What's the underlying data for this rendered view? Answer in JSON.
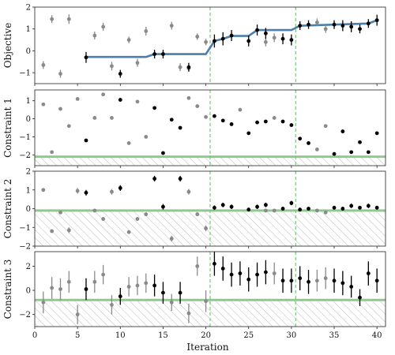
{
  "figure": {
    "xlabel": "Iteration",
    "x_ticks": [
      0,
      5,
      10,
      15,
      20,
      25,
      30,
      35,
      40
    ],
    "xlim": [
      0,
      41
    ],
    "phase_boundaries": [
      20.5,
      30.5
    ]
  },
  "colors": {
    "infeasible": "#8a8a8a",
    "feasible": "#000000",
    "best_line": "#4a7fab",
    "threshold": "#8fc98f",
    "phase_line": "#7cc47c",
    "hatch": "#bbbbbb"
  },
  "chart_data": [
    {
      "type": "scatter",
      "ylabel": "Objective",
      "ylim": [
        -1.5,
        2
      ],
      "yticks": [
        -1,
        0,
        1,
        2
      ],
      "series": [
        {
          "style": "infeasible",
          "points": [
            [
              1,
              -0.65,
              0.18
            ],
            [
              2,
              1.45,
              0.18
            ],
            [
              3,
              -1.05,
              0.18
            ],
            [
              4,
              1.45,
              0.22
            ],
            [
              7,
              0.7,
              0.18
            ],
            [
              8,
              1.1,
              0.18
            ],
            [
              9,
              -0.7,
              0.2
            ],
            [
              11,
              0.5,
              0.15
            ],
            [
              12,
              -0.55,
              0.18
            ],
            [
              13,
              0.9,
              0.2
            ],
            [
              16,
              1.15,
              0.18
            ],
            [
              17,
              -0.75,
              0.18
            ],
            [
              18,
              -0.8,
              0.15
            ],
            [
              19,
              0.65,
              0.15
            ],
            [
              20,
              0.4,
              0.15
            ],
            [
              27,
              0.4,
              0.2
            ],
            [
              28,
              0.6,
              0.2
            ],
            [
              33,
              1.3,
              0.18
            ],
            [
              34,
              1.0,
              0.18
            ]
          ]
        },
        {
          "style": "feasible",
          "points": [
            [
              6,
              -0.3,
              0.25
            ],
            [
              10,
              -1.05,
              0.18
            ],
            [
              14,
              -0.15,
              0.2
            ],
            [
              15,
              -0.15,
              0.2
            ],
            [
              18,
              -0.75,
              0.2
            ],
            [
              21,
              0.45,
              0.3
            ],
            [
              22,
              0.55,
              0.3
            ],
            [
              23,
              0.7,
              0.25
            ],
            [
              25,
              0.45,
              0.25
            ],
            [
              26,
              0.95,
              0.25
            ],
            [
              27,
              0.8,
              0.25
            ],
            [
              29,
              0.55,
              0.25
            ],
            [
              30,
              0.5,
              0.25
            ],
            [
              31,
              1.15,
              0.2
            ],
            [
              32,
              1.2,
              0.2
            ],
            [
              35,
              1.2,
              0.2
            ],
            [
              36,
              1.15,
              0.25
            ],
            [
              37,
              1.1,
              0.25
            ],
            [
              38,
              1.0,
              0.2
            ],
            [
              39,
              1.25,
              0.2
            ],
            [
              40,
              1.4,
              0.25
            ]
          ]
        }
      ],
      "best_so_far": {
        "x": [
          6,
          13,
          14,
          20,
          21,
          22,
          23,
          25,
          26,
          30,
          31,
          35,
          39,
          40
        ],
        "y": [
          -0.28,
          -0.28,
          -0.15,
          -0.15,
          0.45,
          0.55,
          0.68,
          0.68,
          0.95,
          0.95,
          1.15,
          1.2,
          1.25,
          1.4
        ]
      }
    },
    {
      "type": "scatter",
      "ylabel": "Constraint 1",
      "ylim": [
        -2.6,
        1.6
      ],
      "yticks": [
        -2,
        -1,
        0,
        1
      ],
      "threshold": -2.1,
      "series": [
        {
          "style": "infeasible",
          "points": [
            [
              1,
              0.8,
              0.05
            ],
            [
              2,
              -1.85,
              0.05
            ],
            [
              3,
              0.55,
              0.05
            ],
            [
              4,
              -0.4,
              0.05
            ],
            [
              5,
              1.1,
              0.05
            ],
            [
              7,
              0.05,
              0.05
            ],
            [
              8,
              1.35,
              0.05
            ],
            [
              9,
              0.05,
              0.05
            ],
            [
              11,
              -1.35,
              0.05
            ],
            [
              12,
              0.95,
              0.05
            ],
            [
              13,
              -1.0,
              0.05
            ],
            [
              18,
              1.15,
              0.05
            ],
            [
              19,
              0.7,
              0.05
            ],
            [
              20,
              0.1,
              0.05
            ],
            [
              24,
              0.5,
              0.05
            ],
            [
              28,
              0.05,
              0.05
            ],
            [
              33,
              -1.7,
              0.05
            ],
            [
              34,
              -0.4,
              0.05
            ]
          ]
        },
        {
          "style": "feasible",
          "points": [
            [
              6,
              -1.2,
              0.05
            ],
            [
              10,
              1.05,
              0.05
            ],
            [
              14,
              0.6,
              0.05
            ],
            [
              15,
              -1.9,
              0.05
            ],
            [
              16,
              -0.05,
              0.05
            ],
            [
              17,
              -0.5,
              0.05
            ],
            [
              21,
              0.15,
              0.05
            ],
            [
              22,
              -0.1,
              0.05
            ],
            [
              23,
              -0.3,
              0.05
            ],
            [
              25,
              -0.8,
              0.05
            ],
            [
              26,
              -0.2,
              0.05
            ],
            [
              27,
              -0.15,
              0.05
            ],
            [
              29,
              -0.15,
              0.05
            ],
            [
              30,
              -0.35,
              0.05
            ],
            [
              31,
              -1.1,
              0.05
            ],
            [
              32,
              -1.35,
              0.05
            ],
            [
              35,
              -1.95,
              0.05
            ],
            [
              36,
              -0.7,
              0.05
            ],
            [
              37,
              -1.85,
              0.05
            ],
            [
              38,
              -1.3,
              0.05
            ],
            [
              39,
              -1.85,
              0.05
            ],
            [
              40,
              -0.8,
              0.05
            ]
          ]
        }
      ]
    },
    {
      "type": "scatter",
      "ylabel": "Constraint 2",
      "ylim": [
        -2,
        2
      ],
      "yticks": [
        -2,
        -1,
        0,
        1,
        2
      ],
      "threshold": -0.1,
      "series": [
        {
          "style": "infeasible",
          "points": [
            [
              1,
              1.0,
              0.1
            ],
            [
              2,
              -1.2,
              0.1
            ],
            [
              3,
              -0.2,
              0.1
            ],
            [
              4,
              -1.15,
              0.15
            ],
            [
              5,
              0.95,
              0.15
            ],
            [
              7,
              -0.1,
              0.1
            ],
            [
              8,
              -0.55,
              0.1
            ],
            [
              9,
              0.9,
              0.15
            ],
            [
              11,
              -1.25,
              0.1
            ],
            [
              12,
              -0.55,
              0.1
            ],
            [
              13,
              -0.3,
              0.1
            ],
            [
              16,
              -1.6,
              0.15
            ],
            [
              18,
              0.9,
              0.15
            ],
            [
              19,
              -0.3,
              0.1
            ],
            [
              20,
              -1.05,
              0.15
            ],
            [
              27,
              -0.1,
              0.1
            ],
            [
              28,
              -0.1,
              0.1
            ],
            [
              33,
              -0.1,
              0.1
            ],
            [
              34,
              -0.2,
              0.1
            ]
          ]
        },
        {
          "style": "feasible",
          "points": [
            [
              6,
              0.85,
              0.15
            ],
            [
              10,
              1.1,
              0.15
            ],
            [
              14,
              1.6,
              0.15
            ],
            [
              15,
              0.1,
              0.15
            ],
            [
              17,
              1.6,
              0.15
            ],
            [
              21,
              0.05,
              0.12
            ],
            [
              22,
              0.2,
              0.12
            ],
            [
              23,
              0.1,
              0.12
            ],
            [
              25,
              -0.05,
              0.1
            ],
            [
              26,
              0.1,
              0.12
            ],
            [
              27,
              0.2,
              0.12
            ],
            [
              29,
              0.0,
              0.1
            ],
            [
              30,
              0.3,
              0.12
            ],
            [
              31,
              -0.05,
              0.1
            ],
            [
              32,
              0.0,
              0.1
            ],
            [
              35,
              0.05,
              0.1
            ],
            [
              36,
              0.0,
              0.1
            ],
            [
              37,
              0.15,
              0.12
            ],
            [
              38,
              0.05,
              0.1
            ],
            [
              39,
              0.15,
              0.12
            ],
            [
              40,
              0.05,
              0.1
            ]
          ]
        }
      ]
    },
    {
      "type": "scatter",
      "ylabel": "Constraint 3",
      "ylim": [
        -3,
        3.2
      ],
      "yticks": [
        -2,
        0,
        2
      ],
      "threshold": -0.8,
      "series": [
        {
          "style": "infeasible",
          "points": [
            [
              1,
              -1.0,
              0.9
            ],
            [
              2,
              0.2,
              0.9
            ],
            [
              3,
              0.1,
              0.9
            ],
            [
              4,
              0.7,
              0.9
            ],
            [
              5,
              -2.0,
              0.8
            ],
            [
              7,
              0.7,
              0.9
            ],
            [
              8,
              1.3,
              0.8
            ],
            [
              9,
              -1.2,
              0.8
            ],
            [
              11,
              0.3,
              0.8
            ],
            [
              12,
              0.4,
              0.8
            ],
            [
              13,
              0.6,
              0.8
            ],
            [
              16,
              -1.0,
              0.7
            ],
            [
              18,
              -1.9,
              0.8
            ],
            [
              19,
              2.0,
              0.8
            ],
            [
              20,
              -0.9,
              0.9
            ],
            [
              28,
              1.4,
              0.9
            ],
            [
              33,
              0.8,
              0.9
            ],
            [
              34,
              1.0,
              0.9
            ]
          ]
        },
        {
          "style": "feasible",
          "points": [
            [
              6,
              0.1,
              0.9
            ],
            [
              10,
              -0.5,
              0.7
            ],
            [
              14,
              0.4,
              0.9
            ],
            [
              15,
              -0.2,
              0.9
            ],
            [
              17,
              -0.2,
              0.9
            ],
            [
              21,
              2.2,
              1.0
            ],
            [
              22,
              1.8,
              1.0
            ],
            [
              23,
              1.3,
              1.0
            ],
            [
              24,
              1.4,
              1.0
            ],
            [
              25,
              0.9,
              1.0
            ],
            [
              26,
              1.3,
              1.0
            ],
            [
              27,
              1.5,
              1.0
            ],
            [
              29,
              0.8,
              1.0
            ],
            [
              30,
              0.8,
              1.0
            ],
            [
              31,
              1.0,
              1.0
            ],
            [
              32,
              0.7,
              1.0
            ],
            [
              35,
              0.8,
              1.0
            ],
            [
              36,
              0.6,
              1.0
            ],
            [
              37,
              0.3,
              0.9
            ],
            [
              38,
              -0.6,
              0.7
            ],
            [
              39,
              1.4,
              1.0
            ],
            [
              40,
              0.8,
              1.0
            ]
          ]
        }
      ]
    }
  ]
}
